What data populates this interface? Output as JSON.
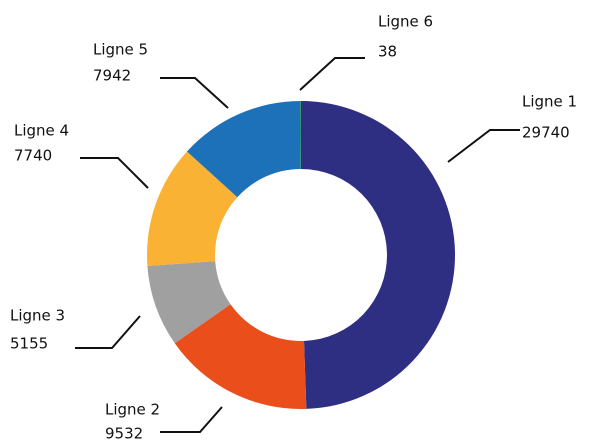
{
  "chart_data": {
    "type": "donut",
    "categories": [
      "Ligne 1",
      "Ligne 2",
      "Ligne 3",
      "Ligne 4",
      "Ligne 5",
      "Ligne 6"
    ],
    "values": [
      29740,
      9532,
      5155,
      7740,
      7942,
      38
    ],
    "colors": [
      "#2e2e82",
      "#e94e1b",
      "#a0a0a0",
      "#f9b233",
      "#1d71b8",
      "#3aaa35"
    ]
  }
}
